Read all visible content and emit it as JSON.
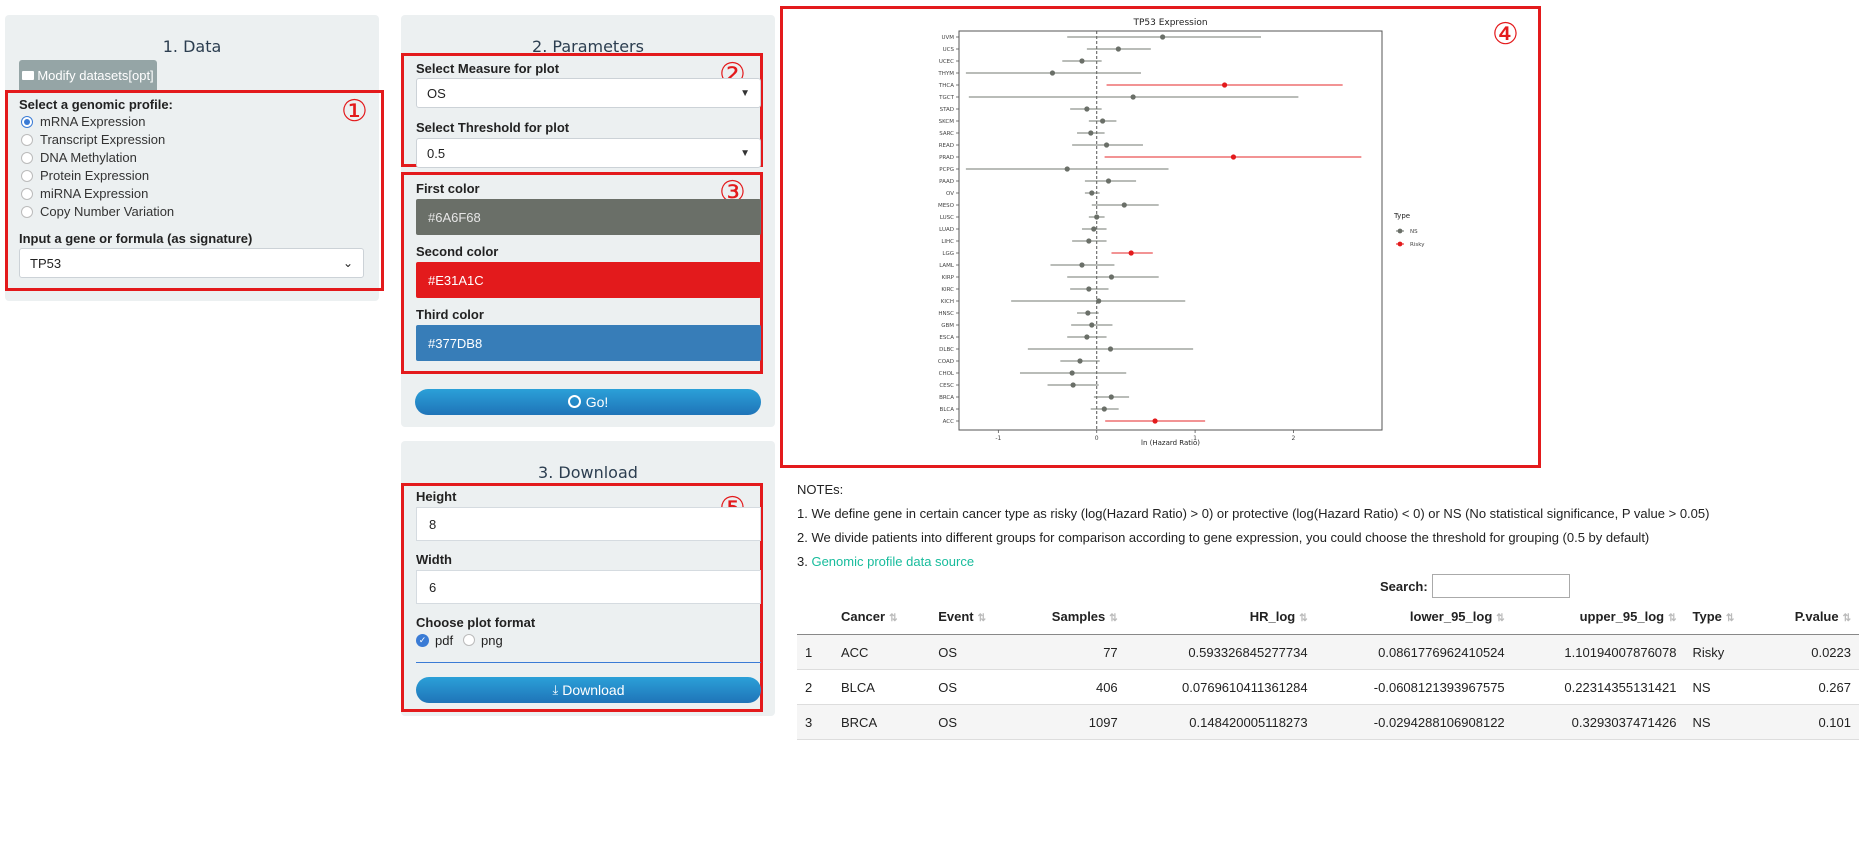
{
  "data_panel": {
    "title": "1. Data",
    "modify_button": "Modify datasets[opt]",
    "profile_label": "Select a genomic profile:",
    "profiles": [
      "mRNA Expression",
      "Transcript Expression",
      "DNA Methylation",
      "Protein Expression",
      "miRNA Expression",
      "Copy Number Variation"
    ],
    "selected_profile": "mRNA Expression",
    "gene_label": "Input a gene or formula (as signature)",
    "gene_value": "TP53",
    "marker": "①"
  },
  "params_panel": {
    "title": "2. Parameters",
    "measure_label": "Select Measure for plot",
    "measure_value": "OS",
    "threshold_label": "Select Threshold for plot",
    "threshold_value": "0.5",
    "marker_params": "②",
    "marker_colors": "③",
    "first_color_label": "First color",
    "first_color": "#6A6F68",
    "second_color_label": "Second color",
    "second_color": "#E31A1C",
    "third_color_label": "Third color",
    "third_color": "#377DB8",
    "go_button": "Go!"
  },
  "download_panel": {
    "title": "3. Download",
    "marker": "⑤",
    "height_label": "Height",
    "height_value": "8",
    "width_label": "Width",
    "width_value": "6",
    "format_label": "Choose plot format",
    "format_options": [
      "pdf",
      "png"
    ],
    "selected_format": "pdf",
    "download_button": "Download"
  },
  "plot": {
    "marker": "④"
  },
  "chart_data": {
    "type": "scatter",
    "title": "TP53 Expression",
    "xlabel": "ln (Hazard Ratio)",
    "ylabel": "",
    "xlim": [
      -1.4,
      2.9
    ],
    "xticks": [
      -1,
      0,
      1,
      2
    ],
    "grid": false,
    "legend": {
      "title": "Type",
      "position": "right",
      "entries": [
        {
          "name": "NS",
          "color": "#6A6F68"
        },
        {
          "name": "Risky",
          "color": "#E31A1C"
        }
      ]
    },
    "categories": [
      "UVM",
      "UCS",
      "UCEC",
      "THYM",
      "THCA",
      "TGCT",
      "STAD",
      "SKCM",
      "SARC",
      "READ",
      "PRAD",
      "PCPG",
      "PAAD",
      "OV",
      "MESO",
      "LUSC",
      "LUAD",
      "LIHC",
      "LGG",
      "LAML",
      "KIRP",
      "KIRC",
      "KICH",
      "HNSC",
      "GBM",
      "ESCA",
      "DLBC",
      "COAD",
      "CHOL",
      "CESC",
      "BRCA",
      "BLCA",
      "ACC"
    ],
    "points": [
      {
        "cancer": "UVM",
        "hr": 0.67,
        "lower": -0.3,
        "upper": 1.67,
        "type": "NS"
      },
      {
        "cancer": "UCS",
        "hr": 0.22,
        "lower": -0.1,
        "upper": 0.55,
        "type": "NS"
      },
      {
        "cancer": "UCEC",
        "hr": -0.15,
        "lower": -0.35,
        "upper": 0.05,
        "type": "NS"
      },
      {
        "cancer": "THYM",
        "hr": -0.45,
        "lower": -1.33,
        "upper": 0.45,
        "type": "NS"
      },
      {
        "cancer": "THCA",
        "hr": 1.3,
        "lower": 0.1,
        "upper": 2.5,
        "type": "Risky"
      },
      {
        "cancer": "TGCT",
        "hr": 0.37,
        "lower": -1.3,
        "upper": 2.05,
        "type": "NS"
      },
      {
        "cancer": "STAD",
        "hr": -0.1,
        "lower": -0.27,
        "upper": 0.05,
        "type": "NS"
      },
      {
        "cancer": "SKCM",
        "hr": 0.06,
        "lower": -0.08,
        "upper": 0.2,
        "type": "NS"
      },
      {
        "cancer": "SARC",
        "hr": -0.06,
        "lower": -0.2,
        "upper": 0.08,
        "type": "NS"
      },
      {
        "cancer": "READ",
        "hr": 0.1,
        "lower": -0.25,
        "upper": 0.47,
        "type": "NS"
      },
      {
        "cancer": "PRAD",
        "hr": 1.39,
        "lower": 0.08,
        "upper": 2.69,
        "type": "Risky"
      },
      {
        "cancer": "PCPG",
        "hr": -0.3,
        "lower": -1.33,
        "upper": 0.73,
        "type": "NS"
      },
      {
        "cancer": "PAAD",
        "hr": 0.12,
        "lower": -0.12,
        "upper": 0.4,
        "type": "NS"
      },
      {
        "cancer": "OV",
        "hr": -0.05,
        "lower": -0.12,
        "upper": 0.03,
        "type": "NS"
      },
      {
        "cancer": "MESO",
        "hr": 0.28,
        "lower": -0.05,
        "upper": 0.63,
        "type": "NS"
      },
      {
        "cancer": "LUSC",
        "hr": 0.0,
        "lower": -0.08,
        "upper": 0.08,
        "type": "NS"
      },
      {
        "cancer": "LUAD",
        "hr": -0.03,
        "lower": -0.15,
        "upper": 0.1,
        "type": "NS"
      },
      {
        "cancer": "LIHC",
        "hr": -0.08,
        "lower": -0.25,
        "upper": 0.1,
        "type": "NS"
      },
      {
        "cancer": "LGG",
        "hr": 0.35,
        "lower": 0.15,
        "upper": 0.57,
        "type": "Risky"
      },
      {
        "cancer": "LAML",
        "hr": -0.15,
        "lower": -0.47,
        "upper": 0.18,
        "type": "NS"
      },
      {
        "cancer": "KIRP",
        "hr": 0.15,
        "lower": -0.3,
        "upper": 0.63,
        "type": "NS"
      },
      {
        "cancer": "KIRC",
        "hr": -0.08,
        "lower": -0.27,
        "upper": 0.12,
        "type": "NS"
      },
      {
        "cancer": "KICH",
        "hr": 0.02,
        "lower": -0.87,
        "upper": 0.9,
        "type": "NS"
      },
      {
        "cancer": "HNSC",
        "hr": -0.09,
        "lower": -0.2,
        "upper": 0.02,
        "type": "NS"
      },
      {
        "cancer": "GBM",
        "hr": -0.05,
        "lower": -0.26,
        "upper": 0.16,
        "type": "NS"
      },
      {
        "cancer": "ESCA",
        "hr": -0.1,
        "lower": -0.3,
        "upper": 0.1,
        "type": "NS"
      },
      {
        "cancer": "DLBC",
        "hr": 0.14,
        "lower": -0.7,
        "upper": 0.98,
        "type": "NS"
      },
      {
        "cancer": "COAD",
        "hr": -0.17,
        "lower": -0.37,
        "upper": 0.03,
        "type": "NS"
      },
      {
        "cancer": "CHOL",
        "hr": -0.25,
        "lower": -0.78,
        "upper": 0.3,
        "type": "NS"
      },
      {
        "cancer": "CESC",
        "hr": -0.24,
        "lower": -0.5,
        "upper": 0.02,
        "type": "NS"
      },
      {
        "cancer": "BRCA",
        "hr": 0.148,
        "lower": -0.029,
        "upper": 0.329,
        "type": "NS"
      },
      {
        "cancer": "BLCA",
        "hr": 0.077,
        "lower": -0.061,
        "upper": 0.223,
        "type": "NS"
      },
      {
        "cancer": "ACC",
        "hr": 0.593,
        "lower": 0.086,
        "upper": 1.102,
        "type": "Risky"
      }
    ]
  },
  "notes": {
    "heading": "NOTEs:",
    "line1": "1. We define gene in certain cancer type as risky (log(Hazard Ratio) > 0) or protective (log(Hazard Ratio) < 0) or NS (No statistical significance, P value > 0.05)",
    "line2": "2. We divide patients into different groups for comparison according to gene expression, you could choose the threshold for grouping (0.5 by default)",
    "line3_prefix": "3. ",
    "line3_link": "Genomic profile data source"
  },
  "table": {
    "search_label": "Search:",
    "search_value": "",
    "columns": [
      "Cancer",
      "Event",
      "Samples",
      "HR_log",
      "lower_95_log",
      "upper_95_log",
      "Type",
      "P.value"
    ],
    "rows": [
      [
        "1",
        "ACC",
        "OS",
        "77",
        "0.593326845277734",
        "0.0861776962410524",
        "1.10194007876078",
        "Risky",
        "0.0223"
      ],
      [
        "2",
        "BLCA",
        "OS",
        "406",
        "0.0769610411361284",
        "-0.0608121393967575",
        "0.22314355131421",
        "NS",
        "0.267"
      ],
      [
        "3",
        "BRCA",
        "OS",
        "1097",
        "0.148420005118273",
        "-0.0294288106908122",
        "0.3293037471426",
        "NS",
        "0.101"
      ]
    ]
  }
}
